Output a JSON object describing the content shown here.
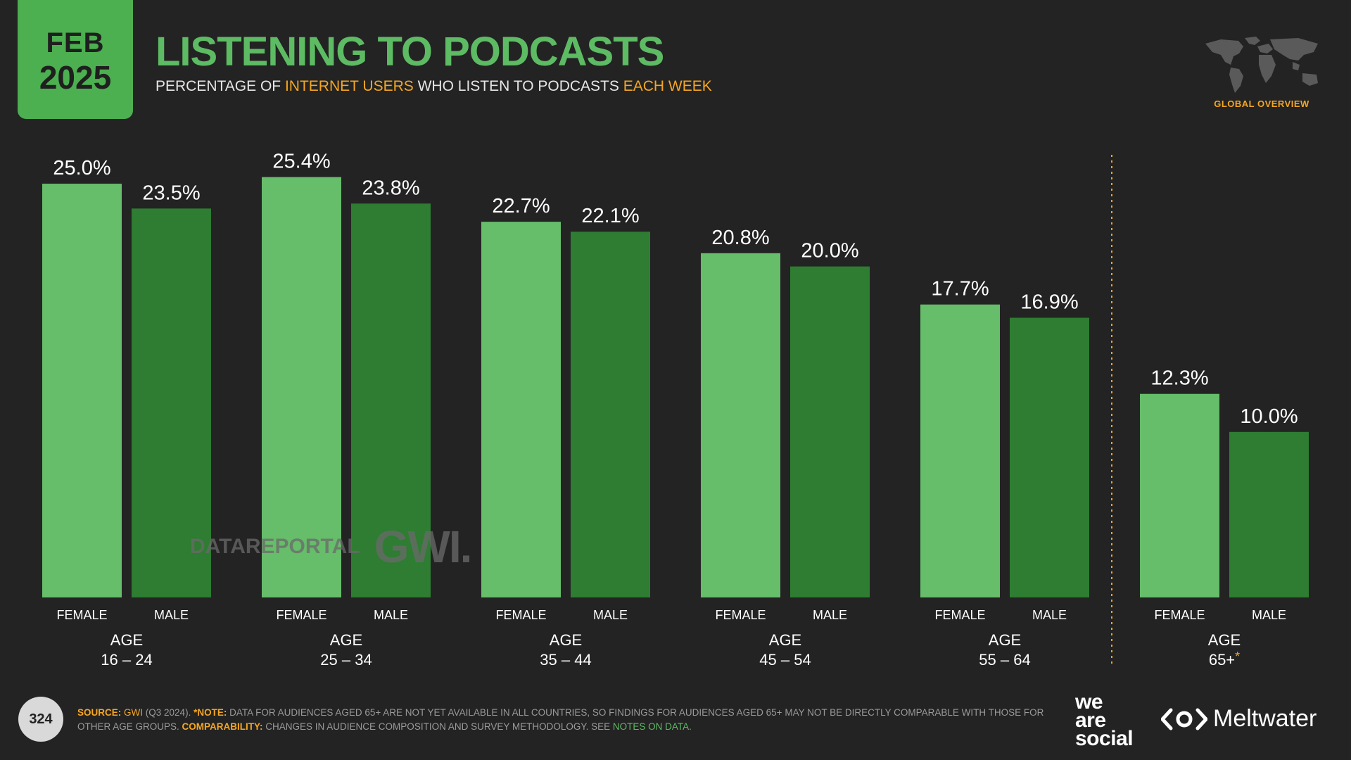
{
  "badge": {
    "month": "FEB",
    "year": "2025"
  },
  "title": "LISTENING TO PODCASTS",
  "subtitle": {
    "p1": "PERCENTAGE OF ",
    "h1": "INTERNET USERS",
    "p2": " WHO LISTEN TO PODCASTS ",
    "h2": "EACH WEEK"
  },
  "region_label": "GLOBAL OVERVIEW",
  "watermark": {
    "datareportal": "DATAREPORTAL",
    "gwi": "GWI."
  },
  "page_number": "324",
  "footer": {
    "source_label": "SOURCE:",
    "source_name": "GWI",
    "source_rest": " (Q3 2024). ",
    "note_label": "*NOTE:",
    "note_text": " DATA FOR AUDIENCES AGED 65+ ARE NOT YET AVAILABLE IN ALL COUNTRIES, SO FINDINGS FOR AUDIENCES AGED 65+ MAY NOT BE DIRECTLY COMPARABLE WITH THOSE FOR OTHER AGE GROUPS. ",
    "comparability_label": "COMPARABILITY:",
    "comparability_text": " CHANGES IN AUDIENCE COMPOSITION AND SURVEY METHODOLOGY. SEE ",
    "notes_link": "NOTES ON DATA",
    "end": "."
  },
  "brands": {
    "was1": "we",
    "was2": "are",
    "was3": "social",
    "meltwater": "Meltwater"
  },
  "colors": {
    "female": "#66bd6a",
    "male": "#2e7d32",
    "accent": "#f5a623",
    "title": "#5dbb63"
  },
  "chart_data": {
    "type": "bar",
    "ylim": [
      0,
      27
    ],
    "groups": [
      {
        "age_label": "AGE",
        "age_range": "16 – 24",
        "bars": [
          {
            "label": "FEMALE",
            "value": 25.0,
            "text": "25.0%"
          },
          {
            "label": "MALE",
            "value": 23.5,
            "text": "23.5%"
          }
        ]
      },
      {
        "age_label": "AGE",
        "age_range": "25 – 34",
        "bars": [
          {
            "label": "FEMALE",
            "value": 25.4,
            "text": "25.4%"
          },
          {
            "label": "MALE",
            "value": 23.8,
            "text": "23.8%"
          }
        ]
      },
      {
        "age_label": "AGE",
        "age_range": "35 – 44",
        "bars": [
          {
            "label": "FEMALE",
            "value": 22.7,
            "text": "22.7%"
          },
          {
            "label": "MALE",
            "value": 22.1,
            "text": "22.1%"
          }
        ]
      },
      {
        "age_label": "AGE",
        "age_range": "45 – 54",
        "bars": [
          {
            "label": "FEMALE",
            "value": 20.8,
            "text": "20.8%"
          },
          {
            "label": "MALE",
            "value": 20.0,
            "text": "20.0%"
          }
        ]
      },
      {
        "age_label": "AGE",
        "age_range": "55 – 64",
        "bars": [
          {
            "label": "FEMALE",
            "value": 17.7,
            "text": "17.7%"
          },
          {
            "label": "MALE",
            "value": 16.9,
            "text": "16.9%"
          }
        ]
      },
      {
        "age_label": "AGE",
        "age_range": "65+",
        "age_note": "*",
        "bars": [
          {
            "label": "FEMALE",
            "value": 12.3,
            "text": "12.3%"
          },
          {
            "label": "MALE",
            "value": 10.0,
            "text": "10.0%"
          }
        ]
      }
    ]
  }
}
